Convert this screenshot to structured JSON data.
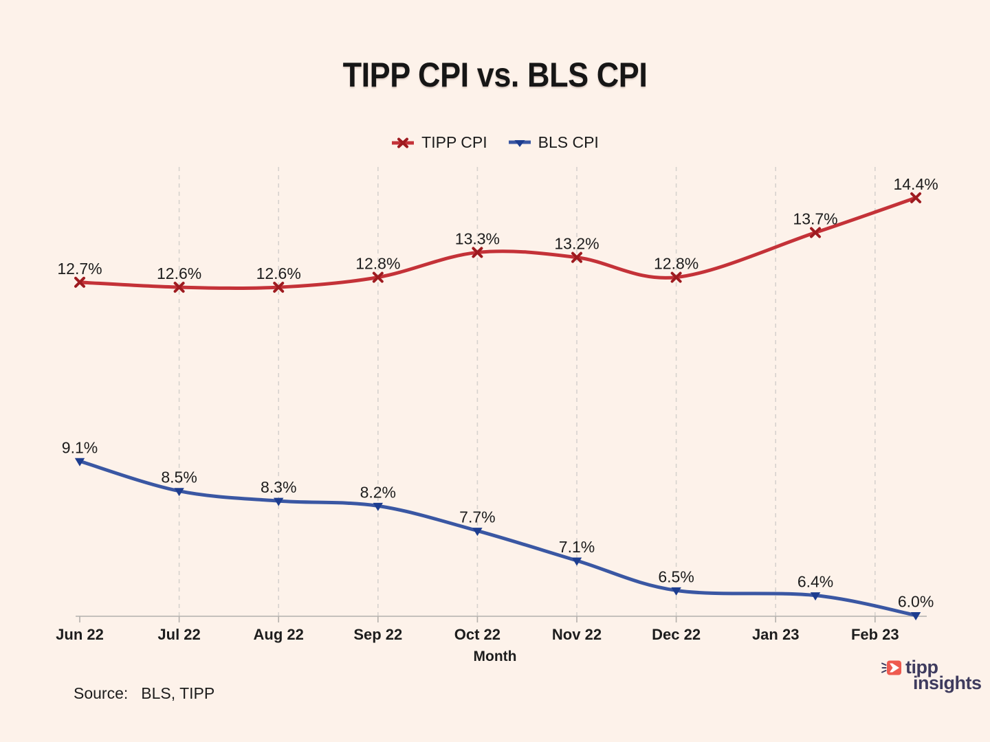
{
  "title": "TIPP CPI vs. BLS CPI",
  "legend": {
    "items": [
      {
        "label": "TIPP CPI"
      },
      {
        "label": "BLS CPI"
      }
    ]
  },
  "chart_data": {
    "type": "line",
    "categories": [
      "Jun 22",
      "Jul 22",
      "Aug 22",
      "Sep 22",
      "Oct 22",
      "Nov 22",
      "Dec 22",
      "Jan 23",
      "Feb 23"
    ],
    "series": [
      {
        "name": "TIPP CPI",
        "marker": "x",
        "color": "#c43238",
        "marker_color": "#9e1b20",
        "values": [
          12.7,
          12.6,
          12.6,
          12.8,
          13.3,
          13.2,
          12.8,
          13.7,
          14.4
        ],
        "data_labels": [
          "12.7%",
          "12.6%",
          "12.6%",
          "12.8%",
          "13.3%",
          "13.2%",
          "12.8%",
          "13.7%",
          "14.4%"
        ]
      },
      {
        "name": "BLS CPI",
        "marker": "triangle-down",
        "color": "#3a57a3",
        "marker_color": "#1d3d8f",
        "values": [
          9.1,
          8.5,
          8.3,
          8.2,
          7.7,
          7.1,
          6.5,
          6.4,
          6.0
        ],
        "data_labels": [
          "9.1%",
          "8.5%",
          "8.3%",
          "8.2%",
          "7.7%",
          "7.1%",
          "6.5%",
          "6.4%",
          "6.0%"
        ]
      }
    ],
    "x_point_offsets": [
      0,
      1,
      2,
      3,
      4,
      5,
      6,
      7.4,
      8.41
    ],
    "xlabel": "Month",
    "ylabel": "",
    "ylim": [
      5.98,
      15.02
    ],
    "grid": "vertical dashed gridlines at every month except the first",
    "legend_position": "top-center"
  },
  "footer": {
    "source_label": "Source:",
    "source_value": "BLS, TIPP"
  },
  "logo": {
    "line1": "tipp",
    "line2": "insights"
  },
  "colors": {
    "background": "#fdf2ea",
    "title_text": "#161616",
    "grid_line": "#d6d2ce",
    "axis_line": "#c4c0bc",
    "tick_mark": "#b3afab",
    "tick_label": "#1d1d1d",
    "data_label": "#1c1c1c",
    "tipp_red": "#c43238",
    "tipp_red_marker": "#9e1b20",
    "bls_blue": "#3a57a3",
    "bls_blue_marker": "#1d3d8f",
    "logo_navy": "#3e3b5e",
    "logo_coral": "#ee5a4f"
  }
}
